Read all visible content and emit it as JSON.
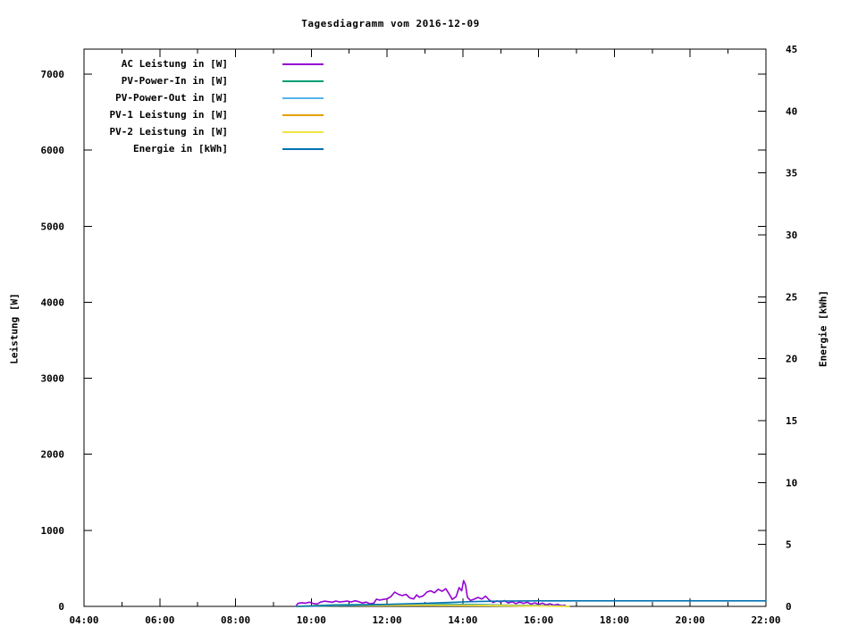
{
  "chart_data": {
    "type": "line",
    "title": "Tagesdiagramm vom 2016-12-09",
    "x_axis": {
      "range_hours": [
        4,
        22
      ],
      "major_tick_hours": [
        4,
        6,
        8,
        10,
        12,
        14,
        16,
        18,
        20,
        22
      ],
      "major_tick_labels": [
        "04:00",
        "06:00",
        "08:00",
        "10:00",
        "12:00",
        "14:00",
        "16:00",
        "18:00",
        "20:00",
        "22:00"
      ],
      "minor_tick_hours": [
        5,
        7,
        9,
        11,
        13,
        15,
        17,
        19,
        21
      ],
      "mirrored_on_top": true
    },
    "y_axis": {
      "label": "Leistung [W]",
      "ticks": [
        0,
        1000,
        2000,
        3000,
        4000,
        5000,
        6000,
        7000
      ],
      "range": [
        0,
        7330
      ],
      "mirrored_on_right": true
    },
    "y2_axis": {
      "label": "Energie [kWh]",
      "ticks": [
        0,
        5,
        10,
        15,
        20,
        25,
        30,
        35,
        40,
        45
      ],
      "range": [
        0,
        45
      ]
    },
    "grid": "off",
    "legend_position": "top-left-inside",
    "series": [
      {
        "name": "AC Leistung in [W]",
        "color": "#9400d3",
        "axis": "y1",
        "points": [
          [
            9.6,
            10
          ],
          [
            9.65,
            40
          ],
          [
            9.75,
            48
          ],
          [
            9.85,
            42
          ],
          [
            9.95,
            55
          ],
          [
            10.05,
            38
          ],
          [
            10.15,
            30
          ],
          [
            10.25,
            58
          ],
          [
            10.35,
            68
          ],
          [
            10.45,
            62
          ],
          [
            10.55,
            55
          ],
          [
            10.65,
            70
          ],
          [
            10.75,
            58
          ],
          [
            10.85,
            64
          ],
          [
            10.95,
            70
          ],
          [
            11.05,
            58
          ],
          [
            11.15,
            74
          ],
          [
            11.25,
            62
          ],
          [
            11.35,
            45
          ],
          [
            11.45,
            56
          ],
          [
            11.55,
            34
          ],
          [
            11.65,
            42
          ],
          [
            11.72,
            95
          ],
          [
            11.8,
            82
          ],
          [
            11.9,
            92
          ],
          [
            12.0,
            100
          ],
          [
            12.1,
            128
          ],
          [
            12.2,
            188
          ],
          [
            12.3,
            158
          ],
          [
            12.4,
            142
          ],
          [
            12.5,
            158
          ],
          [
            12.6,
            112
          ],
          [
            12.7,
            98
          ],
          [
            12.78,
            152
          ],
          [
            12.85,
            120
          ],
          [
            12.95,
            138
          ],
          [
            13.05,
            188
          ],
          [
            13.15,
            205
          ],
          [
            13.25,
            178
          ],
          [
            13.35,
            225
          ],
          [
            13.45,
            198
          ],
          [
            13.55,
            232
          ],
          [
            13.65,
            152
          ],
          [
            13.72,
            92
          ],
          [
            13.82,
            128
          ],
          [
            13.9,
            248
          ],
          [
            13.97,
            205
          ],
          [
            14.02,
            340
          ],
          [
            14.07,
            280
          ],
          [
            14.12,
            120
          ],
          [
            14.2,
            78
          ],
          [
            14.3,
            95
          ],
          [
            14.4,
            118
          ],
          [
            14.5,
            98
          ],
          [
            14.6,
            135
          ],
          [
            14.7,
            82
          ],
          [
            14.8,
            52
          ],
          [
            14.9,
            72
          ],
          [
            15.0,
            58
          ],
          [
            15.1,
            76
          ],
          [
            15.2,
            44
          ],
          [
            15.3,
            62
          ],
          [
            15.4,
            36
          ],
          [
            15.5,
            56
          ],
          [
            15.6,
            40
          ],
          [
            15.7,
            54
          ],
          [
            15.8,
            30
          ],
          [
            15.9,
            46
          ],
          [
            16.0,
            26
          ],
          [
            16.1,
            42
          ],
          [
            16.2,
            20
          ],
          [
            16.3,
            34
          ],
          [
            16.4,
            16
          ],
          [
            16.5,
            26
          ],
          [
            16.6,
            10
          ],
          [
            16.7,
            14
          ]
        ]
      },
      {
        "name": "PV-Power-In in [W]",
        "color": "#009e73",
        "axis": "y1",
        "points": [
          [
            9.6,
            0
          ],
          [
            10.0,
            8
          ],
          [
            10.3,
            15
          ],
          [
            10.6,
            20
          ],
          [
            11.0,
            22
          ],
          [
            11.5,
            24
          ],
          [
            12.0,
            26
          ],
          [
            12.5,
            28
          ],
          [
            13.0,
            30
          ],
          [
            13.5,
            28
          ],
          [
            14.0,
            26
          ],
          [
            14.5,
            22
          ],
          [
            15.0,
            18
          ],
          [
            15.5,
            14
          ],
          [
            16.0,
            10
          ],
          [
            16.5,
            6
          ],
          [
            16.8,
            2
          ]
        ]
      },
      {
        "name": "PV-Power-Out in [W]",
        "color": "#56b4e9",
        "axis": "y1",
        "points": [
          [
            9.6,
            0
          ],
          [
            10.0,
            5
          ],
          [
            10.3,
            10
          ],
          [
            10.6,
            14
          ],
          [
            11.0,
            16
          ],
          [
            11.5,
            17
          ],
          [
            12.0,
            19
          ],
          [
            12.5,
            20
          ],
          [
            13.0,
            22
          ],
          [
            13.5,
            20
          ],
          [
            14.0,
            19
          ],
          [
            14.5,
            16
          ],
          [
            15.0,
            13
          ],
          [
            15.5,
            10
          ],
          [
            16.0,
            7
          ],
          [
            16.5,
            4
          ],
          [
            16.8,
            1
          ]
        ]
      },
      {
        "name": "PV-1 Leistung in [W]",
        "color": "#e69f00",
        "axis": "y1",
        "points": [
          [
            9.6,
            0
          ],
          [
            10.3,
            8
          ],
          [
            11.0,
            12
          ],
          [
            12.0,
            14
          ],
          [
            13.0,
            16
          ],
          [
            14.0,
            14
          ],
          [
            15.0,
            10
          ],
          [
            16.0,
            5
          ],
          [
            16.8,
            1
          ]
        ]
      },
      {
        "name": "PV-2 Leistung in [W]",
        "color": "#f0e442",
        "axis": "y1",
        "points": [
          [
            9.6,
            0
          ],
          [
            10.3,
            7
          ],
          [
            11.0,
            10
          ],
          [
            12.0,
            12
          ],
          [
            13.0,
            14
          ],
          [
            14.0,
            12
          ],
          [
            15.0,
            8
          ],
          [
            16.0,
            4
          ],
          [
            16.8,
            1
          ]
        ]
      },
      {
        "name": "Energie in [kWh]",
        "color": "#0072b2",
        "axis": "y2",
        "points": [
          [
            9.6,
            0
          ],
          [
            10.0,
            0.02
          ],
          [
            10.33,
            0.04
          ],
          [
            10.67,
            0.07
          ],
          [
            11.0,
            0.09
          ],
          [
            11.5,
            0.12
          ],
          [
            12.0,
            0.16
          ],
          [
            12.5,
            0.2
          ],
          [
            13.0,
            0.25
          ],
          [
            13.33,
            0.29
          ],
          [
            13.67,
            0.32
          ],
          [
            14.0,
            0.36
          ],
          [
            14.33,
            0.39
          ],
          [
            14.67,
            0.41
          ],
          [
            15.0,
            0.43
          ],
          [
            15.5,
            0.44
          ],
          [
            16.0,
            0.45
          ],
          [
            17.0,
            0.45
          ],
          [
            22.0,
            0.45
          ]
        ]
      }
    ]
  }
}
